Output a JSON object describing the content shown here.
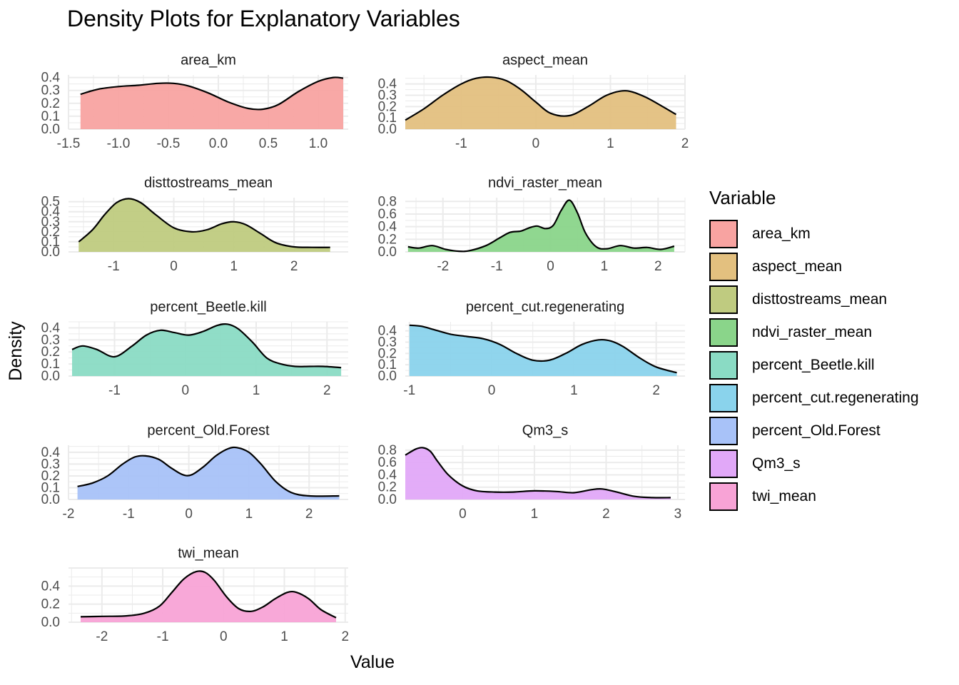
{
  "title": "Density Plots for Explanatory Variables",
  "xlabel": "Value",
  "ylabel": "Density",
  "legend": {
    "title": "Variable",
    "items": [
      {
        "label": "area_km",
        "color": "#F8A3A1"
      },
      {
        "label": "aspect_mean",
        "color": "#E3C07F"
      },
      {
        "label": "disttostreams_mean",
        "color": "#BFCB80"
      },
      {
        "label": "ndvi_raster_mean",
        "color": "#8AD58A"
      },
      {
        "label": "percent_Beetle.kill",
        "color": "#8ADBC4"
      },
      {
        "label": "percent_cut.regenerating",
        "color": "#8AD3EC"
      },
      {
        "label": "percent_Old.Forest",
        "color": "#A8C2F8"
      },
      {
        "label": "Qm3_s",
        "color": "#E1A8F8"
      },
      {
        "label": "twi_mean",
        "color": "#F8A3D6"
      }
    ]
  },
  "chart_data": [
    {
      "type": "area",
      "title": "area_km",
      "fill": "#F8A3A1",
      "xlim": [
        -1.5,
        1.3
      ],
      "ylim": [
        0,
        0.42
      ],
      "xticks": [
        -1.5,
        -1.0,
        -0.5,
        0.0,
        0.5,
        1.0
      ],
      "xtick_labels": [
        "-1.5",
        "-1.0",
        "-0.5",
        "0.0",
        "0.5",
        "1.0"
      ],
      "yticks": [
        0.0,
        0.1,
        0.2,
        0.3,
        0.4
      ],
      "ytick_labels": [
        "0.0",
        "0.1",
        "0.2",
        "0.3",
        "0.4"
      ],
      "x": [
        -1.38,
        -1.2,
        -1.0,
        -0.8,
        -0.6,
        -0.45,
        -0.3,
        -0.1,
        0.1,
        0.3,
        0.45,
        0.6,
        0.8,
        1.0,
        1.15,
        1.25
      ],
      "y": [
        0.27,
        0.31,
        0.33,
        0.34,
        0.355,
        0.355,
        0.335,
        0.28,
        0.21,
        0.16,
        0.155,
        0.19,
        0.29,
        0.37,
        0.4,
        0.395
      ]
    },
    {
      "type": "area",
      "title": "aspect_mean",
      "fill": "#E3C07F",
      "xlim": [
        -1.75,
        2.0
      ],
      "ylim": [
        0,
        0.48
      ],
      "xticks": [
        -1,
        0,
        1,
        2
      ],
      "xtick_labels": [
        "-1",
        "0",
        "1",
        "2"
      ],
      "yticks": [
        0.0,
        0.1,
        0.2,
        0.3,
        0.4
      ],
      "ytick_labels": [
        "0.0",
        "0.1",
        "0.2",
        "0.3",
        "0.4"
      ],
      "x": [
        -1.75,
        -1.5,
        -1.25,
        -1.0,
        -0.8,
        -0.6,
        -0.4,
        -0.2,
        0.0,
        0.2,
        0.45,
        0.7,
        0.95,
        1.2,
        1.45,
        1.7,
        1.88
      ],
      "y": [
        0.08,
        0.18,
        0.3,
        0.4,
        0.45,
        0.46,
        0.43,
        0.35,
        0.24,
        0.14,
        0.12,
        0.2,
        0.3,
        0.34,
        0.29,
        0.2,
        0.13
      ]
    },
    {
      "type": "area",
      "title": "disttostreams_mean",
      "fill": "#BFCB80",
      "xlim": [
        -1.75,
        2.9
      ],
      "ylim": [
        0,
        0.54
      ],
      "xticks": [
        -1,
        0,
        1,
        2
      ],
      "xtick_labels": [
        "-1",
        "0",
        "1",
        "2"
      ],
      "yticks": [
        0.0,
        0.1,
        0.2,
        0.3,
        0.4,
        0.5
      ],
      "ytick_labels": [
        "0.0",
        "0.1",
        "0.2",
        "0.3",
        "0.4",
        "0.5"
      ],
      "x": [
        -1.58,
        -1.35,
        -1.15,
        -0.95,
        -0.75,
        -0.55,
        -0.3,
        0.0,
        0.3,
        0.55,
        0.8,
        1.0,
        1.2,
        1.45,
        1.7,
        2.0,
        2.3,
        2.6
      ],
      "y": [
        0.1,
        0.22,
        0.37,
        0.49,
        0.53,
        0.49,
        0.37,
        0.24,
        0.2,
        0.22,
        0.28,
        0.3,
        0.27,
        0.18,
        0.09,
        0.05,
        0.045,
        0.045
      ]
    },
    {
      "type": "area",
      "title": "ndvi_raster_mean",
      "fill": "#8AD58A",
      "xlim": [
        -2.7,
        2.5
      ],
      "ylim": [
        0,
        0.86
      ],
      "xticks": [
        -2,
        -1,
        0,
        1,
        2
      ],
      "xtick_labels": [
        "-2",
        "-1",
        "0",
        "1",
        "2"
      ],
      "yticks": [
        0.0,
        0.2,
        0.4,
        0.6,
        0.8
      ],
      "ytick_labels": [
        "0.0",
        "0.2",
        "0.4",
        "0.6",
        "0.8"
      ],
      "x": [
        -2.65,
        -2.45,
        -2.2,
        -1.95,
        -1.7,
        -1.5,
        -1.2,
        -0.95,
        -0.75,
        -0.55,
        -0.4,
        -0.25,
        -0.1,
        0.05,
        0.2,
        0.35,
        0.5,
        0.65,
        0.85,
        1.05,
        1.3,
        1.55,
        1.8,
        2.05,
        2.3
      ],
      "y": [
        0.08,
        0.06,
        0.1,
        0.04,
        0.01,
        0.02,
        0.1,
        0.22,
        0.31,
        0.33,
        0.38,
        0.41,
        0.37,
        0.42,
        0.66,
        0.82,
        0.62,
        0.3,
        0.08,
        0.05,
        0.1,
        0.06,
        0.07,
        0.04,
        0.09
      ]
    },
    {
      "type": "area",
      "title": "percent_Beetle.kill",
      "fill": "#8ADBC4",
      "xlim": [
        -1.65,
        2.3
      ],
      "ylim": [
        0,
        0.45
      ],
      "xticks": [
        -1,
        0,
        1,
        2
      ],
      "xtick_labels": [
        "-1",
        "0",
        "1",
        "2"
      ],
      "yticks": [
        0.0,
        0.1,
        0.2,
        0.3,
        0.4
      ],
      "ytick_labels": [
        "0.0",
        "0.1",
        "0.2",
        "0.3",
        "0.4"
      ],
      "x": [
        -1.6,
        -1.45,
        -1.25,
        -1.0,
        -0.75,
        -0.55,
        -0.35,
        -0.15,
        0.05,
        0.25,
        0.45,
        0.6,
        0.75,
        0.95,
        1.15,
        1.35,
        1.55,
        1.75,
        1.95,
        2.2
      ],
      "y": [
        0.22,
        0.25,
        0.22,
        0.16,
        0.25,
        0.34,
        0.38,
        0.36,
        0.34,
        0.37,
        0.42,
        0.43,
        0.39,
        0.28,
        0.15,
        0.1,
        0.08,
        0.08,
        0.08,
        0.07
      ]
    },
    {
      "type": "area",
      "title": "percent_cut.regenerating",
      "fill": "#8AD3EC",
      "xlim": [
        -1.05,
        2.35
      ],
      "ylim": [
        0,
        0.48
      ],
      "xticks": [
        -1,
        0,
        1,
        2
      ],
      "xtick_labels": [
        "-1",
        "0",
        "1",
        "2"
      ],
      "yticks": [
        0.0,
        0.1,
        0.2,
        0.3,
        0.4
      ],
      "ytick_labels": [
        "0.0",
        "0.1",
        "0.2",
        "0.3",
        "0.4"
      ],
      "x": [
        -1.0,
        -0.85,
        -0.7,
        -0.5,
        -0.3,
        -0.1,
        0.1,
        0.3,
        0.5,
        0.7,
        0.9,
        1.1,
        1.3,
        1.45,
        1.6,
        1.8,
        2.0,
        2.25
      ],
      "y": [
        0.45,
        0.44,
        0.41,
        0.37,
        0.35,
        0.33,
        0.28,
        0.2,
        0.14,
        0.14,
        0.2,
        0.28,
        0.32,
        0.31,
        0.26,
        0.16,
        0.08,
        0.03
      ]
    },
    {
      "type": "area",
      "title": "percent_Old.Forest",
      "fill": "#A8C2F8",
      "xlim": [
        -2.0,
        2.65
      ],
      "ylim": [
        0,
        0.46
      ],
      "xticks": [
        -2,
        -1,
        0,
        1,
        2
      ],
      "xtick_labels": [
        "-2",
        "-1",
        "0",
        "1",
        "2"
      ],
      "yticks": [
        0.0,
        0.1,
        0.2,
        0.3,
        0.4
      ],
      "ytick_labels": [
        "0.0",
        "0.1",
        "0.2",
        "0.3",
        "0.4"
      ],
      "x": [
        -1.85,
        -1.6,
        -1.35,
        -1.1,
        -0.9,
        -0.72,
        -0.5,
        -0.3,
        -0.1,
        0.05,
        0.25,
        0.45,
        0.65,
        0.8,
        1.0,
        1.2,
        1.45,
        1.7,
        2.0,
        2.5
      ],
      "y": [
        0.11,
        0.14,
        0.2,
        0.3,
        0.36,
        0.37,
        0.34,
        0.27,
        0.21,
        0.21,
        0.28,
        0.37,
        0.43,
        0.44,
        0.4,
        0.3,
        0.15,
        0.06,
        0.03,
        0.03
      ]
    },
    {
      "type": "area",
      "title": "Qm3_s",
      "fill": "#E1A8F8",
      "xlim": [
        -0.8,
        3.1
      ],
      "ylim": [
        0,
        0.88
      ],
      "xticks": [
        0,
        1,
        2,
        3
      ],
      "xtick_labels": [
        "0",
        "1",
        "2",
        "3"
      ],
      "yticks": [
        0.0,
        0.2,
        0.4,
        0.6,
        0.8
      ],
      "ytick_labels": [
        "0.0",
        "0.2",
        "0.4",
        "0.6",
        "0.8"
      ],
      "x": [
        -0.8,
        -0.65,
        -0.55,
        -0.45,
        -0.35,
        -0.2,
        0.0,
        0.2,
        0.45,
        0.7,
        1.0,
        1.3,
        1.55,
        1.8,
        1.95,
        2.15,
        2.4,
        2.65,
        2.9
      ],
      "y": [
        0.72,
        0.82,
        0.84,
        0.78,
        0.62,
        0.4,
        0.22,
        0.14,
        0.12,
        0.12,
        0.14,
        0.13,
        0.11,
        0.16,
        0.17,
        0.12,
        0.05,
        0.03,
        0.03
      ]
    },
    {
      "type": "area",
      "title": "twi_mean",
      "fill": "#F8A3D6",
      "xlim": [
        -2.55,
        2.05
      ],
      "ylim": [
        0,
        0.6
      ],
      "xticks": [
        -2,
        -1,
        0,
        1,
        2
      ],
      "xtick_labels": [
        "-2",
        "-1",
        "0",
        "1",
        "2"
      ],
      "yticks": [
        0.0,
        0.2,
        0.4
      ],
      "ytick_labels": [
        "0.0",
        "0.2",
        "0.4"
      ],
      "x": [
        -2.35,
        -2.0,
        -1.6,
        -1.3,
        -1.05,
        -0.85,
        -0.65,
        -0.45,
        -0.3,
        -0.15,
        0.05,
        0.25,
        0.45,
        0.65,
        0.85,
        1.05,
        1.2,
        1.4,
        1.6,
        1.85
      ],
      "y": [
        0.06,
        0.065,
        0.07,
        0.1,
        0.18,
        0.33,
        0.48,
        0.56,
        0.55,
        0.46,
        0.28,
        0.15,
        0.12,
        0.17,
        0.26,
        0.33,
        0.33,
        0.26,
        0.14,
        0.05
      ]
    }
  ]
}
